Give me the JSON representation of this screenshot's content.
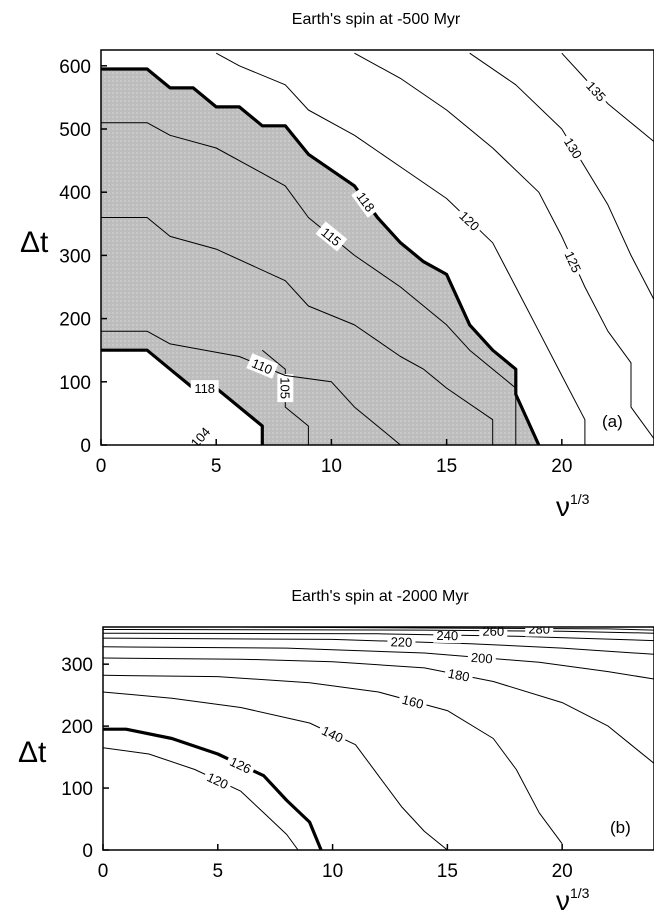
{
  "chart_data": [
    {
      "type": "contour",
      "title": "Earth's spin  at  -500 Myr",
      "xlabel": "ν",
      "xlabel_sup": "1/3",
      "ylabel": "Δt",
      "panel_label": "(a)",
      "xlim": [
        0,
        24
      ],
      "ylim": [
        0,
        625
      ],
      "xticks": [
        "0",
        "5",
        "10",
        "15",
        "20"
      ],
      "yticks": [
        "0",
        "100",
        "200",
        "300",
        "400",
        "500",
        "600"
      ],
      "shaded_region": "between the two 118 boundary contours",
      "contours": [
        {
          "level": 104,
          "label": "104",
          "bold": false,
          "points": [
            [
              4,
              0
            ],
            [
              4.6,
              25
            ]
          ]
        },
        {
          "level": 105,
          "label": "105",
          "bold": false,
          "points": [
            [
              7,
              150
            ],
            [
              8,
              120
            ],
            [
              8,
              60
            ],
            [
              9,
              30
            ],
            [
              9,
              0
            ]
          ]
        },
        {
          "level": 110,
          "label": "110",
          "bold": false,
          "points": [
            [
              0,
              180
            ],
            [
              2,
              180
            ],
            [
              3,
              160
            ],
            [
              6,
              140
            ],
            [
              8,
              110
            ],
            [
              10,
              100
            ],
            [
              11,
              60
            ],
            [
              12,
              30
            ],
            [
              13,
              0
            ]
          ]
        },
        {
          "level": 110,
          "label": "",
          "bold": false,
          "points": [
            [
              0,
              360
            ],
            [
              2,
              360
            ],
            [
              3,
              330
            ],
            [
              5,
              310
            ],
            [
              8,
              260
            ],
            [
              9,
              220
            ],
            [
              11,
              190
            ],
            [
              13,
              140
            ],
            [
              14,
              120
            ],
            [
              15,
              90
            ],
            [
              17,
              40
            ],
            [
              17,
              0
            ]
          ]
        },
        {
          "level": 115,
          "label": "115",
          "bold": false,
          "points": [
            [
              0,
              510
            ],
            [
              2,
              510
            ],
            [
              3,
              490
            ],
            [
              5,
              470
            ],
            [
              7,
              430
            ],
            [
              8,
              410
            ],
            [
              9,
              360
            ],
            [
              11,
              300
            ],
            [
              13,
              250
            ],
            [
              15,
              190
            ],
            [
              16,
              150
            ],
            [
              18,
              90
            ],
            [
              18,
              0
            ]
          ]
        },
        {
          "level": 118,
          "label": "118",
          "bold": true,
          "points": [
            [
              0,
              150
            ],
            [
              2,
              150
            ],
            [
              3,
              120
            ],
            [
              4,
              90
            ],
            [
              5,
              90
            ],
            [
              6,
              60
            ],
            [
              7,
              30
            ],
            [
              7,
              0
            ]
          ]
        },
        {
          "level": 118,
          "label": "118",
          "bold": true,
          "points": [
            [
              0,
              595
            ],
            [
              2,
              595
            ],
            [
              3,
              565
            ],
            [
              4,
              565
            ],
            [
              5,
              535
            ],
            [
              6,
              535
            ],
            [
              7,
              505
            ],
            [
              8,
              505
            ],
            [
              9,
              460
            ],
            [
              11,
              410
            ],
            [
              12,
              360
            ],
            [
              13,
              320
            ],
            [
              14,
              290
            ],
            [
              15,
              270
            ],
            [
              16,
              190
            ],
            [
              17,
              150
            ],
            [
              18,
              120
            ],
            [
              18,
              80
            ],
            [
              19,
              0
            ]
          ]
        },
        {
          "level": 120,
          "label": "120",
          "bold": false,
          "points": [
            [
              5,
              620
            ],
            [
              6,
              600
            ],
            [
              8,
              570
            ],
            [
              9,
              530
            ],
            [
              11,
              490
            ],
            [
              13,
              440
            ],
            [
              15,
              390
            ],
            [
              17,
              320
            ],
            [
              18,
              250
            ],
            [
              19,
              180
            ],
            [
              20,
              110
            ],
            [
              21,
              40
            ],
            [
              21,
              0
            ]
          ]
        },
        {
          "level": 125,
          "label": "125",
          "bold": false,
          "points": [
            [
              11,
              620
            ],
            [
              13,
              580
            ],
            [
              15,
              530
            ],
            [
              17,
              470
            ],
            [
              19,
              400
            ],
            [
              20,
              330
            ],
            [
              21,
              250
            ],
            [
              22,
              180
            ],
            [
              23,
              130
            ],
            [
              23,
              60
            ],
            [
              24,
              10
            ]
          ]
        },
        {
          "level": 130,
          "label": "130",
          "bold": false,
          "points": [
            [
              16,
              620
            ],
            [
              18,
              570
            ],
            [
              20,
              500
            ],
            [
              21,
              440
            ],
            [
              22,
              380
            ],
            [
              23,
              300
            ],
            [
              24,
              230
            ]
          ]
        },
        {
          "level": 135,
          "label": "135",
          "bold": false,
          "points": [
            [
              20,
              620
            ],
            [
              21,
              580
            ],
            [
              22,
              540
            ],
            [
              23,
              510
            ],
            [
              24,
              480
            ]
          ]
        }
      ]
    },
    {
      "type": "contour",
      "title": "Earth's spin  at  -2000 Myr",
      "xlabel": "ν",
      "xlabel_sup": "1/3",
      "ylabel": "Δt",
      "panel_label": "(b)",
      "xlim": [
        0,
        24
      ],
      "ylim": [
        0,
        360
      ],
      "xticks": [
        "0",
        "5",
        "10",
        "15",
        "20"
      ],
      "yticks": [
        "0",
        "100",
        "200",
        "300"
      ],
      "contours": [
        {
          "level": 120,
          "label": "120",
          "bold": false,
          "points": [
            [
              0,
              165
            ],
            [
              2,
              155
            ],
            [
              4,
              130
            ],
            [
              6,
              95
            ],
            [
              7,
              60
            ],
            [
              8,
              25
            ],
            [
              8.5,
              0
            ]
          ]
        },
        {
          "level": 126,
          "label": "126",
          "bold": true,
          "points": [
            [
              0,
              195
            ],
            [
              1,
              195
            ],
            [
              3,
              180
            ],
            [
              5,
              155
            ],
            [
              7,
              120
            ],
            [
              8,
              80
            ],
            [
              9,
              45
            ],
            [
              9.5,
              0
            ]
          ]
        },
        {
          "level": 140,
          "label": "140",
          "bold": false,
          "points": [
            [
              0,
              255
            ],
            [
              3,
              245
            ],
            [
              6,
              230
            ],
            [
              9,
              205
            ],
            [
              11,
              170
            ],
            [
              12,
              120
            ],
            [
              13,
              70
            ],
            [
              14,
              30
            ],
            [
              15,
              0
            ]
          ]
        },
        {
          "level": 160,
          "label": "160",
          "bold": false,
          "points": [
            [
              0,
              282
            ],
            [
              5,
              280
            ],
            [
              9,
              270
            ],
            [
              12,
              255
            ],
            [
              15,
              225
            ],
            [
              17,
              180
            ],
            [
              18,
              130
            ],
            [
              19,
              60
            ],
            [
              20,
              10
            ]
          ]
        },
        {
          "level": 180,
          "label": "180",
          "bold": false,
          "points": [
            [
              0,
              310
            ],
            [
              6,
              308
            ],
            [
              10,
              304
            ],
            [
              14,
              294
            ],
            [
              17,
              272
            ],
            [
              20,
              238
            ],
            [
              22,
              200
            ],
            [
              23,
              170
            ],
            [
              24,
              140
            ]
          ]
        },
        {
          "level": 200,
          "label": "200",
          "bold": false,
          "points": [
            [
              0,
              328
            ],
            [
              8,
              326
            ],
            [
              14,
              318
            ],
            [
              19,
              303
            ],
            [
              22,
              288
            ],
            [
              24,
              276
            ]
          ]
        },
        {
          "level": 220,
          "label": "220",
          "bold": false,
          "points": [
            [
              0,
              342
            ],
            [
              10,
              340
            ],
            [
              16,
              333
            ],
            [
              20,
              326
            ],
            [
              24,
              316
            ]
          ]
        },
        {
          "level": 240,
          "label": "240",
          "bold": false,
          "points": [
            [
              0,
              350
            ],
            [
              12,
              349
            ],
            [
              18,
              345
            ],
            [
              24,
              338
            ]
          ]
        },
        {
          "level": 260,
          "label": "260",
          "bold": false,
          "points": [
            [
              0,
              356
            ],
            [
              14,
              355
            ],
            [
              20,
              353
            ],
            [
              24,
              350
            ]
          ]
        },
        {
          "level": 280,
          "label": "280",
          "bold": false,
          "points": [
            [
              6,
              360
            ],
            [
              16,
              358
            ],
            [
              22,
              357
            ],
            [
              24,
              355
            ]
          ]
        }
      ]
    }
  ]
}
